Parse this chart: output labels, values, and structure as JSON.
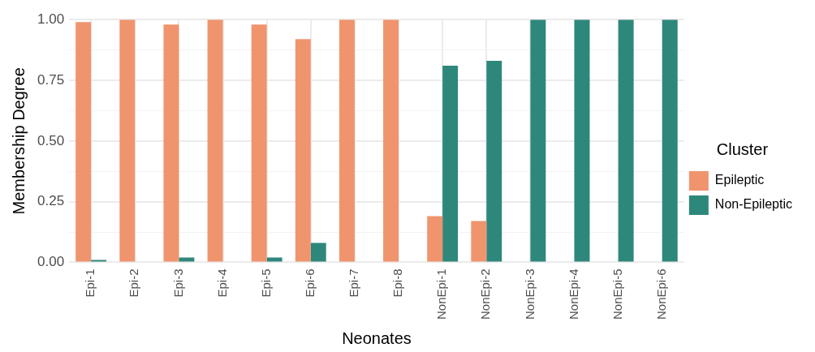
{
  "chart_data": {
    "type": "bar",
    "xlabel": "Neonates",
    "ylabel": "Membership Degree",
    "legend_title": "Cluster",
    "categories": [
      "Epi-1",
      "Epi-2",
      "Epi-3",
      "Epi-4",
      "Epi-5",
      "Epi-6",
      "Epi-7",
      "Epi-8",
      "NonEpi-1",
      "NonEpi-2",
      "NonEpi-3",
      "NonEpi-4",
      "NonEpi-5",
      "NonEpi-6"
    ],
    "series": [
      {
        "name": "Epileptic",
        "color": "#f0946e",
        "values": [
          0.99,
          1.0,
          0.98,
          1.0,
          0.98,
          0.92,
          1.0,
          1.0,
          0.19,
          0.17,
          0.0,
          0.0,
          0.0,
          0.0
        ]
      },
      {
        "name": "Non-Epileptic",
        "color": "#2e877b",
        "values": [
          0.01,
          0.0,
          0.02,
          0.0,
          0.02,
          0.08,
          0.0,
          0.0,
          0.81,
          0.83,
          1.0,
          1.0,
          1.0,
          1.0
        ]
      }
    ],
    "ylim": [
      0,
      1
    ],
    "yticks": [
      {
        "value": 0,
        "label": "0.00"
      },
      {
        "value": 0.125,
        "label": null
      },
      {
        "value": 0.25,
        "label": "0.25"
      },
      {
        "value": 0.375,
        "label": null
      },
      {
        "value": 0.5,
        "label": "0.50"
      },
      {
        "value": 0.625,
        "label": null
      },
      {
        "value": 0.75,
        "label": "0.75"
      },
      {
        "value": 0.875,
        "label": null
      },
      {
        "value": 1,
        "label": "1.00"
      }
    ],
    "grid": true,
    "legend": "right"
  }
}
